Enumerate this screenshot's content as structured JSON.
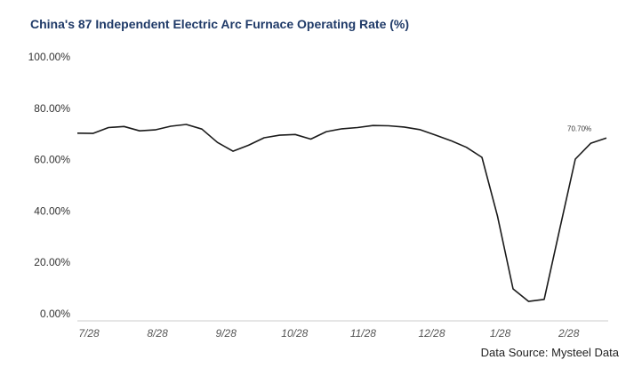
{
  "chart_data": {
    "type": "line",
    "title": "China's 87 Independent Electric Arc Furnace Operating Rate (%)",
    "source": "Data Source: Mysteel Data",
    "ylim": [
      0,
      100
    ],
    "ytick_labels": [
      "0.00%",
      "20.00%",
      "40.00%",
      "60.00%",
      "80.00%",
      "100.00%"
    ],
    "ytick_values": [
      0,
      20,
      40,
      60,
      80,
      100
    ],
    "xtick_labels": [
      "7/28",
      "8/28",
      "9/28",
      "10/28",
      "11/28",
      "12/28",
      "1/28",
      "2/28"
    ],
    "grid": false,
    "series": [
      {
        "color": "#1a1a1a",
        "values": [
          70.3,
          70.2,
          72.5,
          72.9,
          71.2,
          71.6,
          73.0,
          73.7,
          71.9,
          66.7,
          63.3,
          65.6,
          68.5,
          69.5,
          69.8,
          68.0,
          70.9,
          72.0,
          72.5,
          73.3,
          73.2,
          72.7,
          71.7,
          69.6,
          67.4,
          64.8,
          60.9,
          38.0,
          9.7,
          4.8,
          5.6,
          33.0,
          60.2,
          66.4,
          68.4
        ]
      }
    ],
    "annotations": [
      {
        "text": "70.70%",
        "value": 70.7
      }
    ]
  }
}
